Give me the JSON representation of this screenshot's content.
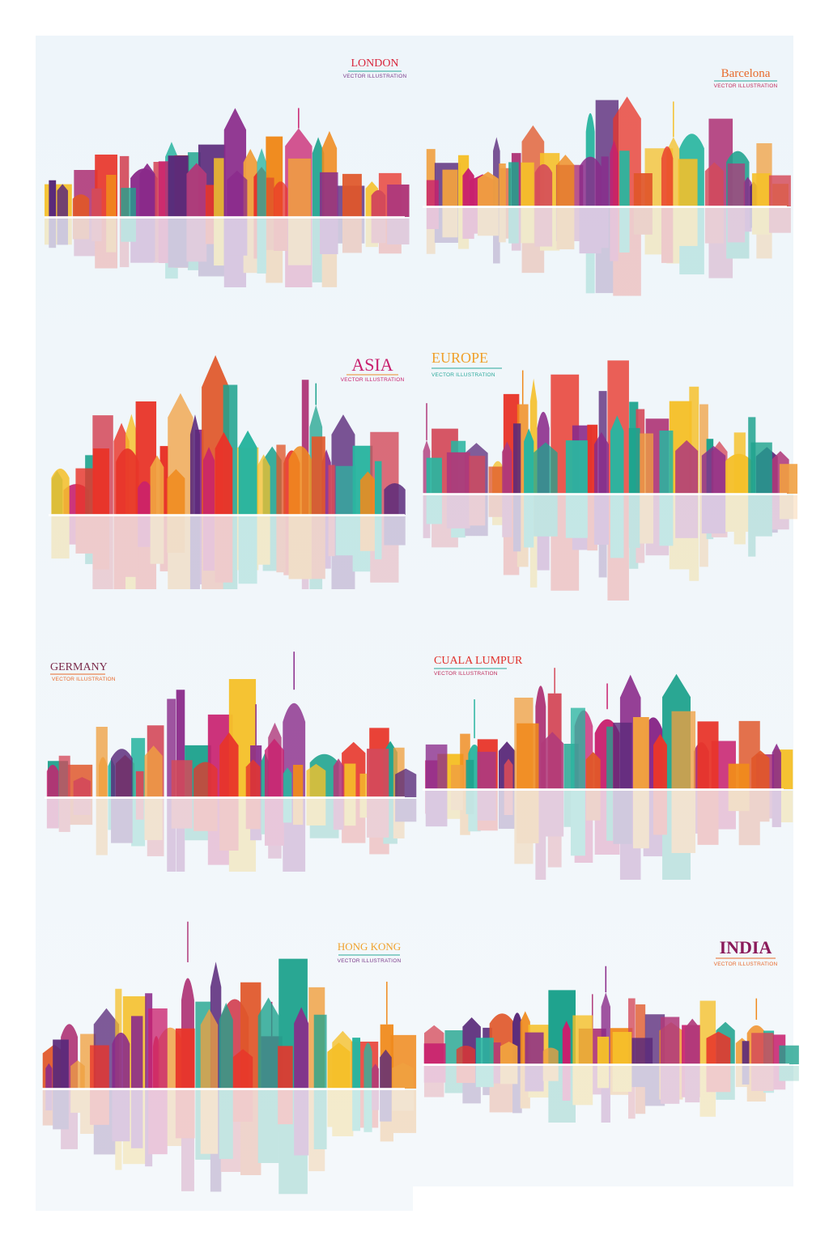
{
  "panels": [
    {
      "title": "LONDON",
      "subtitle": "VECTOR ILLUSTRATION"
    },
    {
      "title": "Barcelona",
      "subtitle": "VECTOR ILLUSTRATION"
    },
    {
      "title": "ASIA",
      "subtitle": "VECTOR ILLUSTRATION"
    },
    {
      "title": "EUROPE",
      "subtitle": "VECTOR ILLUSTRATION"
    },
    {
      "title": "GERMANY",
      "subtitle": "VECTOR ILLUSTRATION"
    },
    {
      "title": "CUALA LUMPUR",
      "subtitle": "VECTOR ILLUSTRATION"
    },
    {
      "title": "HONG KONG",
      "subtitle": "VECTOR ILLUSTRATION"
    },
    {
      "title": "INDIA",
      "subtitle": "VECTOR ILLUSTRATION"
    }
  ]
}
